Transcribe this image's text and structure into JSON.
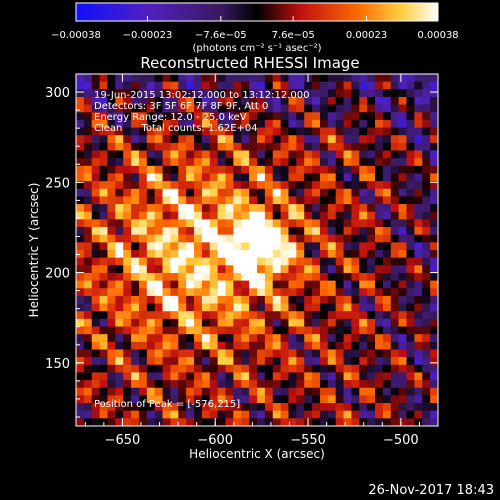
{
  "chart_data": {
    "type": "heatmap",
    "title": "Reconstructed RHESSI Image",
    "xlabel": "Heliocentric X (arcsec)",
    "ylabel": "Heliocentric Y (arcsec)",
    "xlim": [
      -675,
      -480
    ],
    "ylim": [
      115,
      310
    ],
    "xticks": [
      -650,
      -600,
      -550,
      -500
    ],
    "yticks": [
      150,
      200,
      250,
      300
    ],
    "xtick_labels": [
      "−650",
      "−600",
      "−550",
      "−500"
    ],
    "ytick_labels": [
      "150",
      "200",
      "250",
      "300"
    ],
    "colorbar": {
      "range": [
        -0.00038,
        0.00038
      ],
      "tick_labels": [
        "−0.00038",
        "−0.00023",
        "−7.6e−05",
        "7.6e−05",
        "0.00023",
        "0.00038"
      ],
      "unit_label": "(photons cm⁻² s⁻¹ asec⁻²)",
      "colormap": [
        "#1010ff",
        "#5020c0",
        "#3a1a60",
        "#000000",
        "#c01010",
        "#ff6a00",
        "#ffd040",
        "#ffffff"
      ]
    },
    "peak": {
      "x": -576,
      "y": 215
    },
    "annotations": {
      "time_range": "19-Jun-2015 13:02:12.000 to 13:12:12.000",
      "detectors": "Detectors: 3F 5F 6F 7F 8F 9F, Att 0",
      "energy": "Energy Range: 12.0 - 25.0 keV",
      "clean": "Clean      Total counts: 1.62E+04",
      "peak_label": "Position of Peak = [-576,215]"
    },
    "timestamp": "26-Nov-2017 18:43"
  }
}
